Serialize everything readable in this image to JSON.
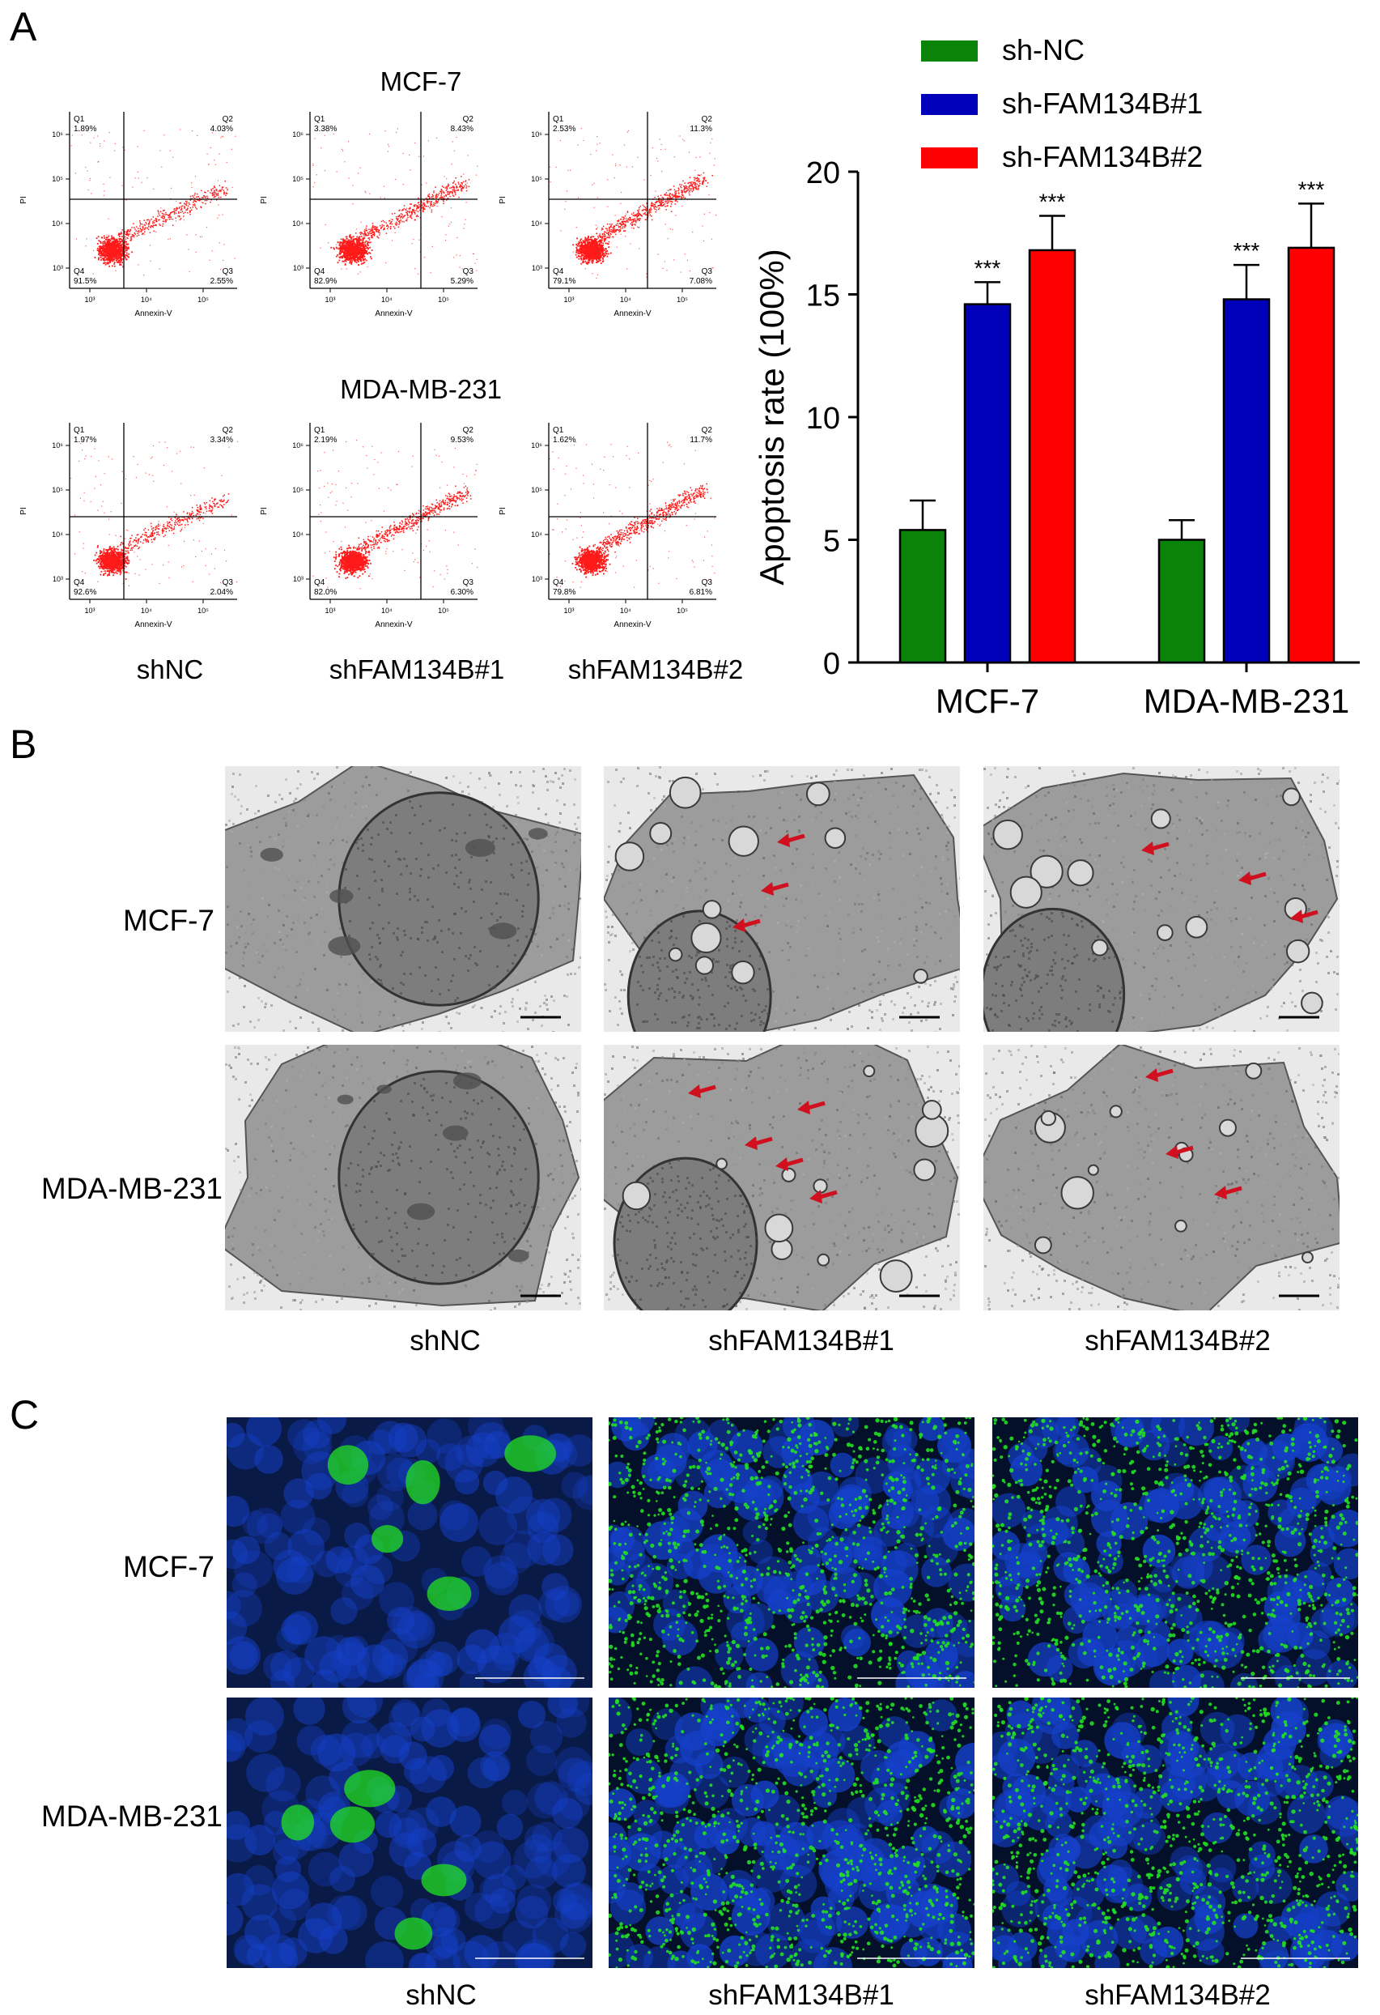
{
  "panels": {
    "a": "A",
    "b": "B",
    "c": "C"
  },
  "flow": {
    "cell_lines": [
      "MCF-7",
      "MDA-MB-231"
    ],
    "columns": [
      "shNC",
      "shFAM134B#1",
      "shFAM134B#2"
    ],
    "x_axis_label": "Annexin-V",
    "y_axis_label": "PI",
    "quadrant_names": [
      "Q1",
      "Q2",
      "Q3",
      "Q4"
    ],
    "tick_labels": [
      "10³",
      "10⁴",
      "10⁵",
      "10⁶"
    ],
    "plots": [
      [
        {
          "q1": "1.89%",
          "q2": "4.03%",
          "q3": "2.55%",
          "q4": "91.5%"
        },
        {
          "q1": "3.38%",
          "q2": "8.43%",
          "q3": "5.29%",
          "q4": "82.9%"
        },
        {
          "q1": "2.53%",
          "q2": "11.3%",
          "q3": "7.08%",
          "q4": "79.1%"
        }
      ],
      [
        {
          "q1": "1.97%",
          "q2": "3.34%",
          "q3": "2.04%",
          "q4": "92.6%"
        },
        {
          "q1": "2.19%",
          "q2": "9.53%",
          "q3": "6.30%",
          "q4": "82.0%"
        },
        {
          "q1": "1.62%",
          "q2": "11.7%",
          "q3": "6.81%",
          "q4": "79.8%"
        }
      ]
    ],
    "dot_color": "#ff1a1a"
  },
  "chart_data": {
    "type": "bar",
    "categories": [
      "MCF-7",
      "MDA-MB-231"
    ],
    "series": [
      {
        "name": "sh-NC",
        "color": "#098409",
        "values": [
          5.4,
          5.0
        ],
        "errors": [
          1.2,
          0.8
        ],
        "sig": [
          "",
          ""
        ]
      },
      {
        "name": "sh-FAM134B#1",
        "color": "#0000b8",
        "values": [
          14.6,
          14.8
        ],
        "errors": [
          0.9,
          1.4
        ],
        "sig": [
          "***",
          "***"
        ]
      },
      {
        "name": "sh-FAM134B#2",
        "color": "#ff0000",
        "values": [
          16.8,
          16.9
        ],
        "errors": [
          1.4,
          1.8
        ],
        "sig": [
          "***",
          "***"
        ]
      }
    ],
    "ylabel": "Apoptosis rate (100%)",
    "ylim": [
      0,
      20
    ],
    "yticks": [
      0,
      5,
      10,
      15,
      20
    ],
    "legend_position": "top"
  },
  "tem": {
    "rows": [
      "MCF-7",
      "MDA-MB-231"
    ],
    "columns": [
      "shNC",
      "shFAM134B#1",
      "shFAM134B#2"
    ],
    "arrow_color": "#d0101e"
  },
  "fluorescence": {
    "rows": [
      "MCF-7",
      "MDA-MB-231"
    ],
    "columns": [
      "shNC",
      "shFAM134B#1",
      "shFAM134B#2"
    ],
    "nucleus_color": "#1540c8",
    "puncta_color": "#22e022"
  }
}
